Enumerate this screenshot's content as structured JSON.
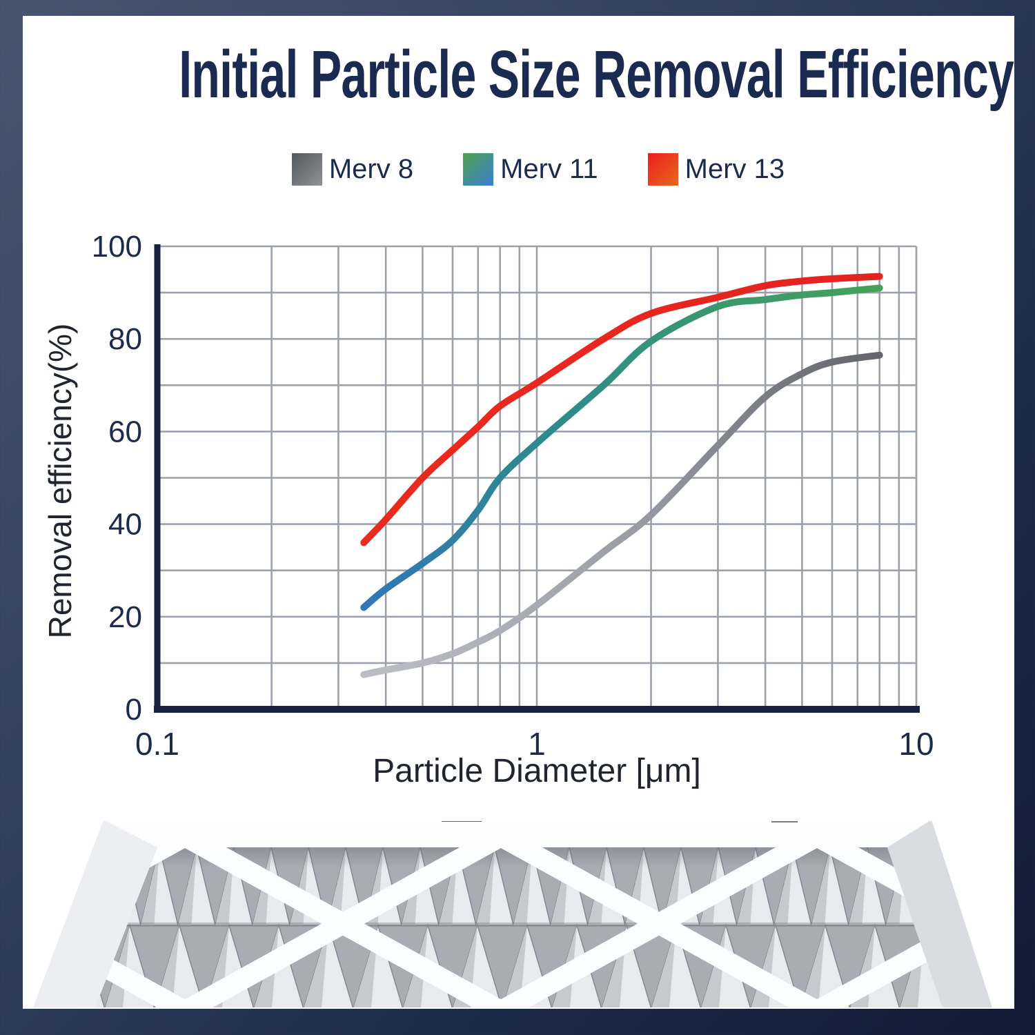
{
  "title": "Initial Particle Size Removal Efficiency",
  "legend": {
    "items": [
      {
        "label": "Merv 8",
        "swatch": [
          "#55575f",
          "#90929a"
        ]
      },
      {
        "label": "Merv 11",
        "swatch": [
          "#4fa24a",
          "#3a7fd6"
        ]
      },
      {
        "label": "Merv 13",
        "swatch": [
          "#ee1d1d",
          "#e8681f"
        ]
      }
    ]
  },
  "chart_data": {
    "type": "line",
    "x_scale": "log",
    "title": "",
    "xlabel": "Particle Diameter [μm]",
    "ylabel": "Removal efficiency(%)",
    "xlim": [
      0.1,
      10
    ],
    "ylim": [
      0,
      100
    ],
    "grid": {
      "x_minor_log_gridlines": true,
      "y_step": 10
    },
    "legend_position": "top",
    "x_ticks": [
      {
        "value": 0.1,
        "label": "0.1"
      },
      {
        "value": 1,
        "label": "1"
      },
      {
        "value": 10,
        "label": "10"
      }
    ],
    "y_ticks": [
      {
        "value": 0,
        "label": "0"
      },
      {
        "value": 20,
        "label": "20"
      },
      {
        "value": 40,
        "label": "40"
      },
      {
        "value": 60,
        "label": "60"
      },
      {
        "value": 80,
        "label": "80"
      },
      {
        "value": 100,
        "label": "100"
      }
    ],
    "series": [
      {
        "name": "Merv 8",
        "points": [
          [
            0.35,
            7.5
          ],
          [
            0.4,
            8.5
          ],
          [
            0.5,
            10
          ],
          [
            0.6,
            12
          ],
          [
            0.7,
            14.5
          ],
          [
            0.8,
            17
          ],
          [
            1,
            22.5
          ],
          [
            1.5,
            34
          ],
          [
            2,
            42
          ],
          [
            3,
            57
          ],
          [
            4,
            67.5
          ],
          [
            5,
            72.5
          ],
          [
            6,
            75
          ],
          [
            8,
            76.5
          ]
        ],
        "stroke_stops": [
          [
            0,
            "#bcbec4"
          ],
          [
            0.5,
            "#9a9da4"
          ],
          [
            1,
            "#64666c"
          ]
        ],
        "width": 10
      },
      {
        "name": "Merv 11",
        "points": [
          [
            0.35,
            22
          ],
          [
            0.4,
            26
          ],
          [
            0.5,
            31.5
          ],
          [
            0.6,
            36.5
          ],
          [
            0.7,
            43
          ],
          [
            0.8,
            50
          ],
          [
            1,
            57.5
          ],
          [
            1.5,
            70
          ],
          [
            2,
            79.5
          ],
          [
            3,
            87
          ],
          [
            4,
            88.5
          ],
          [
            5,
            89.5
          ],
          [
            6,
            90
          ],
          [
            8,
            91
          ]
        ],
        "stroke_stops": [
          [
            0,
            "#3177b6"
          ],
          [
            0.45,
            "#2e8c88"
          ],
          [
            1,
            "#45a15a"
          ]
        ],
        "width": 10
      },
      {
        "name": "Merv 13",
        "points": [
          [
            0.35,
            36
          ],
          [
            0.4,
            41
          ],
          [
            0.5,
            50
          ],
          [
            0.6,
            56
          ],
          [
            0.7,
            61
          ],
          [
            0.8,
            65.5
          ],
          [
            1,
            70.5
          ],
          [
            1.5,
            80
          ],
          [
            2,
            85.5
          ],
          [
            3,
            89
          ],
          [
            4,
            91.5
          ],
          [
            5,
            92.5
          ],
          [
            6,
            93
          ],
          [
            8,
            93.5
          ]
        ],
        "stroke_stops": [
          [
            0,
            "#eb2a1e"
          ],
          [
            1,
            "#e42320"
          ]
        ],
        "width": 10
      }
    ]
  },
  "colors": {
    "axis": "#14223f",
    "grid": "#9ba0ab",
    "tick_text": "#1d2a4a",
    "axis_title_text": "#20242e",
    "title_text": "#1b2a50"
  },
  "product_image": {
    "description": "White pleated air filter with diamond lattice frame"
  }
}
